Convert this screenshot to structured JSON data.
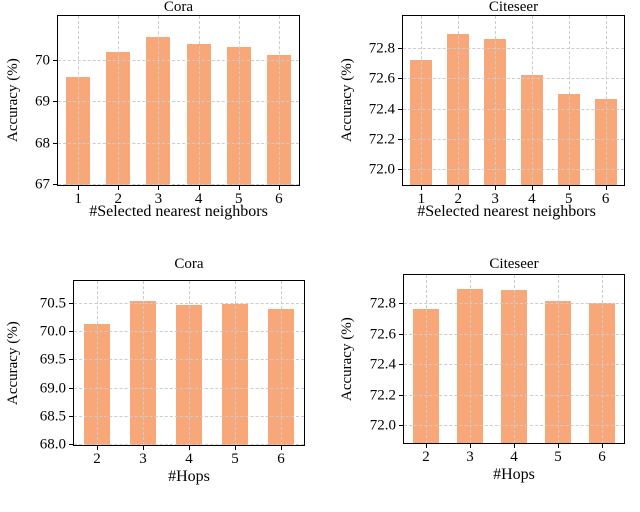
{
  "figure": {
    "background": "#ffffff",
    "bar_color": "#F8A878",
    "grid_color": "#cccccc",
    "spine_color": "#000000",
    "text_color": "#000000"
  },
  "chart_data": [
    {
      "type": "bar",
      "title": "Cora",
      "xlabel": "#Selected nearest neighbors",
      "ylabel": "Accuracy (%)",
      "categories": [
        "1",
        "2",
        "3",
        "4",
        "5",
        "6"
      ],
      "values": [
        69.6,
        70.22,
        70.57,
        70.4,
        70.33,
        70.13
      ],
      "ylim": [
        67.0,
        71.08
      ],
      "ytick_values": [
        67,
        68,
        69,
        70
      ],
      "ytick_labels": [
        "67",
        "68",
        "69",
        "70"
      ],
      "grid": true,
      "legend": null,
      "bar_width_fraction": 0.6
    },
    {
      "type": "bar",
      "title": "Citeseer",
      "xlabel": "#Selected nearest neighbors",
      "ylabel": "Accuracy (%)",
      "categories": [
        "1",
        "2",
        "3",
        "4",
        "5",
        "6"
      ],
      "values": [
        72.73,
        72.9,
        72.87,
        72.63,
        72.5,
        72.47
      ],
      "ylim": [
        71.9,
        73.02
      ],
      "ytick_values": [
        72.0,
        72.2,
        72.4,
        72.6,
        72.8
      ],
      "ytick_labels": [
        "72.0",
        "72.2",
        "72.4",
        "72.6",
        "72.8"
      ],
      "grid": true,
      "legend": null,
      "bar_width_fraction": 0.6
    },
    {
      "type": "bar",
      "title": "Cora",
      "xlabel": "#Hops",
      "ylabel": "Accuracy (%)",
      "categories": [
        "2",
        "3",
        "4",
        "5",
        "6"
      ],
      "values": [
        70.15,
        70.56,
        70.48,
        70.51,
        70.41
      ],
      "ylim": [
        68.0,
        70.91
      ],
      "ytick_values": [
        68.0,
        68.5,
        69.0,
        69.5,
        70.0,
        70.5
      ],
      "ytick_labels": [
        "68.0",
        "68.5",
        "69.0",
        "69.5",
        "70.0",
        "70.5"
      ],
      "grid": true,
      "legend": null,
      "bar_width_fraction": 0.58
    },
    {
      "type": "bar",
      "title": "Citeseer",
      "xlabel": "#Hops",
      "ylabel": "Accuracy (%)",
      "categories": [
        "2",
        "3",
        "4",
        "5",
        "6"
      ],
      "values": [
        72.77,
        72.9,
        72.89,
        72.82,
        72.81
      ],
      "ylim": [
        71.89,
        72.99
      ],
      "ytick_values": [
        72.0,
        72.2,
        72.4,
        72.6,
        72.8
      ],
      "ytick_labels": [
        "72.0",
        "72.2",
        "72.4",
        "72.6",
        "72.8"
      ],
      "grid": true,
      "legend": null,
      "bar_width_fraction": 0.58
    }
  ]
}
